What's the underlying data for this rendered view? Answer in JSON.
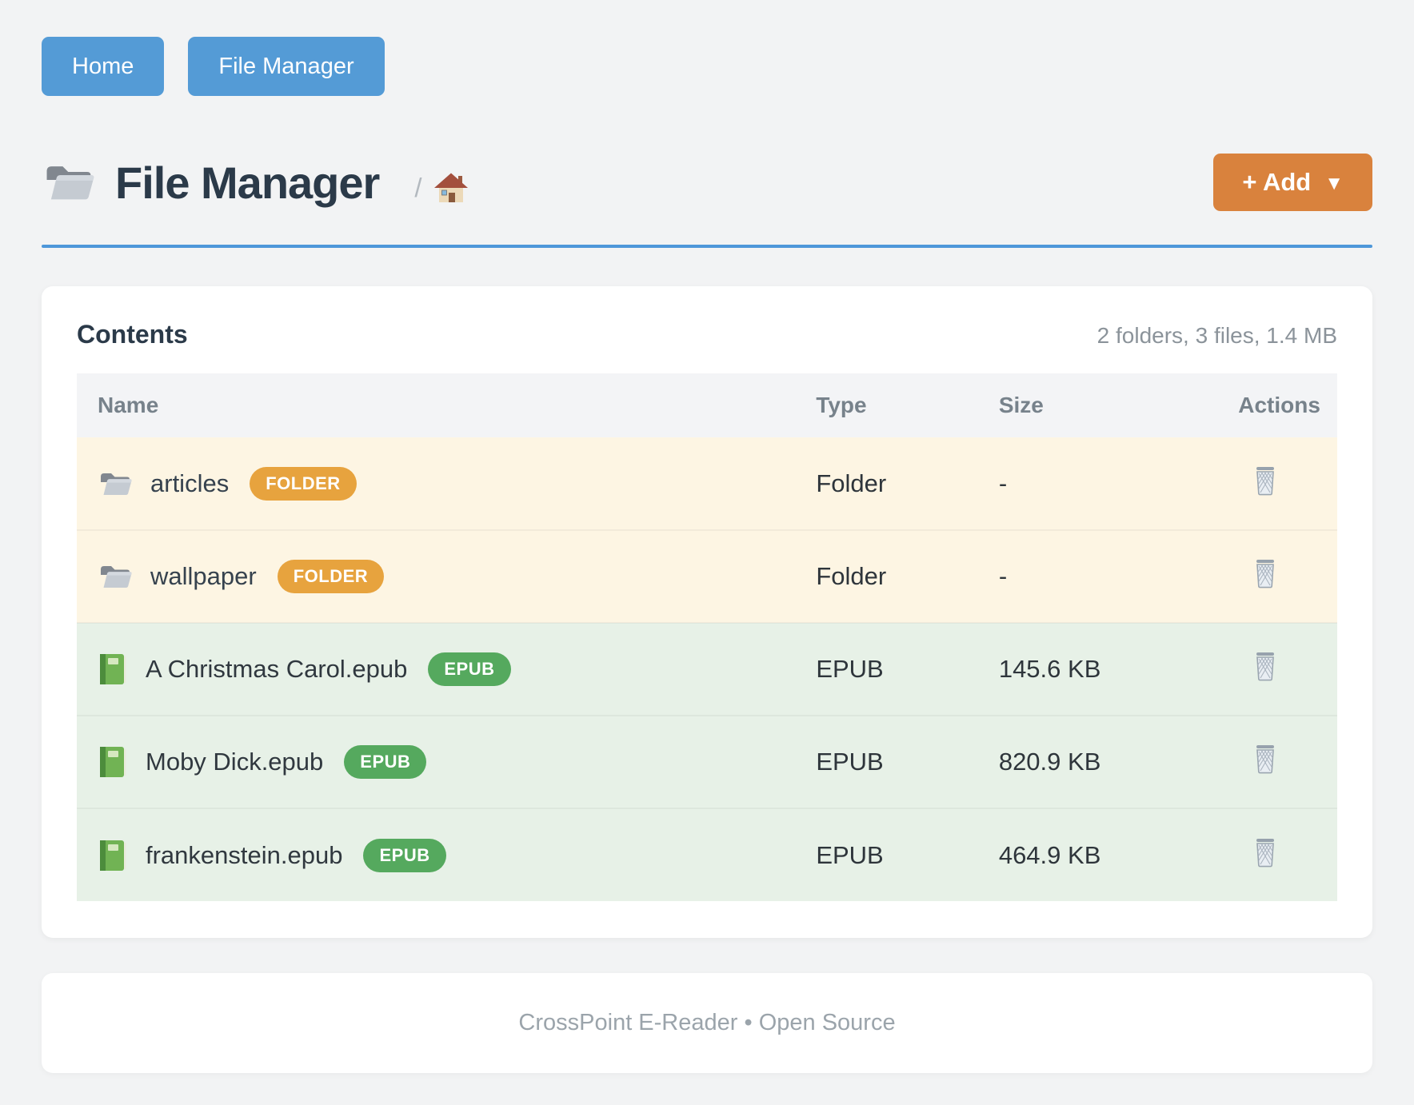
{
  "nav": {
    "items": [
      {
        "label": "Home"
      },
      {
        "label": "File Manager"
      }
    ]
  },
  "page_header": {
    "title": "File Manager",
    "title_icon": "folder-icon",
    "breadcrumb": {
      "separator": "/",
      "home_icon": "house-icon"
    },
    "add_button": {
      "label": "+ Add",
      "caret": "▼"
    }
  },
  "card": {
    "title": "Contents",
    "summary": "2 folders, 3 files, 1.4 MB",
    "columns": [
      "Name",
      "Type",
      "Size",
      "Actions"
    ],
    "rows": [
      {
        "icon": "folder-icon",
        "name": "articles",
        "badge": "FOLDER",
        "badge_style": "orange",
        "kind": "folder",
        "type": "Folder",
        "size": "-",
        "action_icon": "trash-icon"
      },
      {
        "icon": "folder-icon",
        "name": "wallpaper",
        "badge": "FOLDER",
        "badge_style": "orange",
        "kind": "folder",
        "type": "Folder",
        "size": "-",
        "action_icon": "trash-icon"
      },
      {
        "icon": "book-icon",
        "name": "A Christmas Carol.epub",
        "badge": "EPUB",
        "badge_style": "green",
        "kind": "file",
        "type": "EPUB",
        "size": "145.6 KB",
        "action_icon": "trash-icon"
      },
      {
        "icon": "book-icon",
        "name": "Moby Dick.epub",
        "badge": "EPUB",
        "badge_style": "green",
        "kind": "file",
        "type": "EPUB",
        "size": "820.9 KB",
        "action_icon": "trash-icon"
      },
      {
        "icon": "book-icon",
        "name": "frankenstein.epub",
        "badge": "EPUB",
        "badge_style": "green",
        "kind": "file",
        "type": "EPUB",
        "size": "464.9 KB",
        "action_icon": "trash-icon"
      }
    ]
  },
  "footer": {
    "text": "CrossPoint E-Reader • Open Source"
  },
  "colors": {
    "accent_blue": "#549bd6",
    "accent_orange": "#d9823d",
    "badge_orange": "#e7a33e",
    "badge_green": "#55a95e",
    "divider_blue": "#4e97d9",
    "folder_row_bg": "#fdf5e3",
    "file_row_bg": "#e7f1e7",
    "title_color": "#2b3a49"
  }
}
